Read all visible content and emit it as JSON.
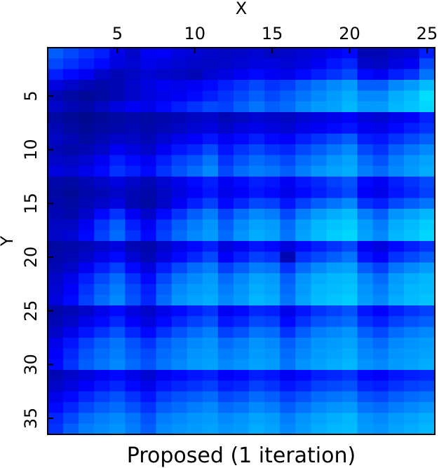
{
  "chart_data": {
    "type": "heatmap",
    "title": "Proposed (1 iteration)",
    "xlabel": "X",
    "ylabel": "Y",
    "x_ticks": [
      5,
      10,
      15,
      20,
      25
    ],
    "y_ticks": [
      5,
      10,
      15,
      20,
      25,
      30,
      35
    ],
    "x_range": [
      1,
      25
    ],
    "y_range": [
      1,
      36
    ],
    "x_axis_position": "top",
    "y_axis_inverted": true,
    "grid": false,
    "legend": "none",
    "colormap": [
      "#000a7a",
      "#0000ff",
      "#0090ff",
      "#00ffff"
    ],
    "value_range": [
      0,
      1
    ],
    "values": [
      [
        0.55,
        0.5,
        0.45,
        0.4,
        0.28,
        0.2,
        0.3,
        0.32,
        0.25,
        0.22,
        0.2,
        0.18,
        0.2,
        0.22,
        0.18,
        0.2,
        0.22,
        0.25,
        0.3,
        0.35,
        0.15,
        0.15,
        0.2,
        0.22,
        0.4
      ],
      [
        0.5,
        0.45,
        0.4,
        0.35,
        0.25,
        0.22,
        0.28,
        0.25,
        0.22,
        0.2,
        0.18,
        0.2,
        0.22,
        0.25,
        0.25,
        0.22,
        0.25,
        0.3,
        0.38,
        0.42,
        0.2,
        0.18,
        0.25,
        0.3,
        0.5
      ],
      [
        0.4,
        0.35,
        0.3,
        0.2,
        0.15,
        0.18,
        0.22,
        0.2,
        0.18,
        0.15,
        0.22,
        0.25,
        0.3,
        0.35,
        0.3,
        0.28,
        0.35,
        0.4,
        0.45,
        0.5,
        0.35,
        0.3,
        0.4,
        0.45,
        0.6
      ],
      [
        0.25,
        0.2,
        0.15,
        0.12,
        0.15,
        0.2,
        0.25,
        0.3,
        0.28,
        0.3,
        0.35,
        0.4,
        0.45,
        0.5,
        0.45,
        0.48,
        0.55,
        0.6,
        0.65,
        0.7,
        0.55,
        0.55,
        0.65,
        0.7,
        0.8
      ],
      [
        0.15,
        0.1,
        0.08,
        0.1,
        0.15,
        0.2,
        0.25,
        0.28,
        0.3,
        0.35,
        0.4,
        0.45,
        0.5,
        0.55,
        0.5,
        0.55,
        0.6,
        0.65,
        0.7,
        0.75,
        0.65,
        0.65,
        0.75,
        0.8,
        0.9
      ],
      [
        0.2,
        0.15,
        0.12,
        0.18,
        0.25,
        0.3,
        0.28,
        0.35,
        0.4,
        0.45,
        0.5,
        0.48,
        0.55,
        0.6,
        0.55,
        0.58,
        0.65,
        0.7,
        0.72,
        0.78,
        0.7,
        0.7,
        0.78,
        0.82,
        0.88
      ],
      [
        0.1,
        0.08,
        0.05,
        0.08,
        0.1,
        0.12,
        0.1,
        0.12,
        0.15,
        0.18,
        0.2,
        0.15,
        0.18,
        0.22,
        0.2,
        0.18,
        0.22,
        0.25,
        0.28,
        0.32,
        0.25,
        0.22,
        0.28,
        0.32,
        0.4
      ],
      [
        0.15,
        0.1,
        0.08,
        0.1,
        0.12,
        0.15,
        0.12,
        0.15,
        0.18,
        0.22,
        0.25,
        0.2,
        0.25,
        0.28,
        0.25,
        0.22,
        0.28,
        0.3,
        0.35,
        0.38,
        0.3,
        0.28,
        0.35,
        0.4,
        0.45
      ],
      [
        0.18,
        0.15,
        0.1,
        0.15,
        0.2,
        0.18,
        0.15,
        0.22,
        0.28,
        0.32,
        0.38,
        0.3,
        0.35,
        0.4,
        0.35,
        0.32,
        0.4,
        0.45,
        0.5,
        0.55,
        0.4,
        0.38,
        0.45,
        0.5,
        0.55
      ],
      [
        0.15,
        0.12,
        0.15,
        0.2,
        0.3,
        0.25,
        0.2,
        0.3,
        0.38,
        0.42,
        0.5,
        0.38,
        0.45,
        0.5,
        0.45,
        0.42,
        0.5,
        0.55,
        0.6,
        0.65,
        0.5,
        0.45,
        0.55,
        0.6,
        0.65
      ],
      [
        0.2,
        0.18,
        0.22,
        0.3,
        0.4,
        0.35,
        0.3,
        0.4,
        0.48,
        0.52,
        0.6,
        0.45,
        0.52,
        0.58,
        0.55,
        0.5,
        0.58,
        0.62,
        0.68,
        0.72,
        0.58,
        0.52,
        0.62,
        0.68,
        0.72
      ],
      [
        0.25,
        0.22,
        0.28,
        0.35,
        0.45,
        0.4,
        0.35,
        0.45,
        0.52,
        0.58,
        0.65,
        0.5,
        0.58,
        0.62,
        0.6,
        0.55,
        0.62,
        0.68,
        0.72,
        0.75,
        0.62,
        0.58,
        0.65,
        0.7,
        0.75
      ],
      [
        0.12,
        0.1,
        0.15,
        0.2,
        0.25,
        0.2,
        0.15,
        0.22,
        0.28,
        0.35,
        0.4,
        0.3,
        0.35,
        0.4,
        0.38,
        0.3,
        0.38,
        0.42,
        0.48,
        0.52,
        0.35,
        0.3,
        0.4,
        0.45,
        0.5
      ],
      [
        0.1,
        0.08,
        0.12,
        0.15,
        0.2,
        0.15,
        0.12,
        0.18,
        0.25,
        0.32,
        0.38,
        0.28,
        0.32,
        0.38,
        0.35,
        0.28,
        0.35,
        0.4,
        0.45,
        0.5,
        0.32,
        0.28,
        0.38,
        0.42,
        0.48
      ],
      [
        0.12,
        0.1,
        0.15,
        0.2,
        0.25,
        0.15,
        0.1,
        0.2,
        0.3,
        0.4,
        0.48,
        0.35,
        0.42,
        0.5,
        0.48,
        0.38,
        0.48,
        0.55,
        0.6,
        0.65,
        0.45,
        0.4,
        0.5,
        0.55,
        0.6
      ],
      [
        0.15,
        0.12,
        0.2,
        0.35,
        0.45,
        0.3,
        0.2,
        0.35,
        0.45,
        0.55,
        0.62,
        0.48,
        0.58,
        0.65,
        0.62,
        0.5,
        0.62,
        0.7,
        0.75,
        0.8,
        0.62,
        0.55,
        0.68,
        0.72,
        0.78
      ],
      [
        0.18,
        0.18,
        0.3,
        0.45,
        0.55,
        0.4,
        0.3,
        0.45,
        0.55,
        0.62,
        0.68,
        0.55,
        0.65,
        0.72,
        0.7,
        0.58,
        0.7,
        0.78,
        0.82,
        0.85,
        0.7,
        0.62,
        0.75,
        0.8,
        0.85
      ],
      [
        0.2,
        0.22,
        0.35,
        0.48,
        0.58,
        0.45,
        0.35,
        0.48,
        0.58,
        0.65,
        0.7,
        0.58,
        0.68,
        0.75,
        0.72,
        0.6,
        0.72,
        0.8,
        0.85,
        0.88,
        0.72,
        0.65,
        0.78,
        0.82,
        0.88
      ],
      [
        0.1,
        0.12,
        0.15,
        0.2,
        0.25,
        0.15,
        0.12,
        0.2,
        0.28,
        0.35,
        0.4,
        0.25,
        0.3,
        0.38,
        0.35,
        0.25,
        0.35,
        0.4,
        0.45,
        0.5,
        0.3,
        0.25,
        0.35,
        0.4,
        0.45
      ],
      [
        0.12,
        0.15,
        0.2,
        0.28,
        0.35,
        0.22,
        0.15,
        0.25,
        0.35,
        0.42,
        0.5,
        0.32,
        0.4,
        0.48,
        0.45,
        0.15,
        0.45,
        0.5,
        0.55,
        0.6,
        0.38,
        0.32,
        0.45,
        0.5,
        0.55
      ],
      [
        0.15,
        0.2,
        0.3,
        0.4,
        0.48,
        0.35,
        0.25,
        0.4,
        0.5,
        0.58,
        0.62,
        0.48,
        0.55,
        0.62,
        0.6,
        0.45,
        0.58,
        0.65,
        0.7,
        0.72,
        0.55,
        0.48,
        0.6,
        0.65,
        0.7
      ],
      [
        0.2,
        0.28,
        0.4,
        0.5,
        0.58,
        0.45,
        0.35,
        0.5,
        0.6,
        0.65,
        0.7,
        0.58,
        0.65,
        0.72,
        0.7,
        0.55,
        0.68,
        0.75,
        0.78,
        0.8,
        0.65,
        0.58,
        0.7,
        0.75,
        0.78
      ],
      [
        0.22,
        0.32,
        0.45,
        0.55,
        0.62,
        0.5,
        0.4,
        0.55,
        0.65,
        0.7,
        0.72,
        0.62,
        0.68,
        0.75,
        0.72,
        0.58,
        0.7,
        0.78,
        0.8,
        0.82,
        0.68,
        0.62,
        0.72,
        0.78,
        0.8
      ],
      [
        0.25,
        0.35,
        0.48,
        0.58,
        0.65,
        0.52,
        0.42,
        0.58,
        0.68,
        0.72,
        0.75,
        0.65,
        0.7,
        0.78,
        0.75,
        0.6,
        0.72,
        0.8,
        0.82,
        0.85,
        0.7,
        0.65,
        0.75,
        0.8,
        0.82
      ],
      [
        0.12,
        0.15,
        0.2,
        0.28,
        0.35,
        0.25,
        0.2,
        0.28,
        0.35,
        0.4,
        0.45,
        0.3,
        0.35,
        0.42,
        0.4,
        0.28,
        0.38,
        0.45,
        0.48,
        0.52,
        0.38,
        0.32,
        0.4,
        0.45,
        0.48
      ],
      [
        0.15,
        0.2,
        0.28,
        0.35,
        0.42,
        0.32,
        0.25,
        0.35,
        0.42,
        0.48,
        0.52,
        0.38,
        0.42,
        0.5,
        0.48,
        0.35,
        0.45,
        0.52,
        0.55,
        0.58,
        0.45,
        0.4,
        0.48,
        0.52,
        0.55
      ],
      [
        0.2,
        0.28,
        0.38,
        0.45,
        0.52,
        0.42,
        0.35,
        0.45,
        0.52,
        0.58,
        0.62,
        0.48,
        0.52,
        0.6,
        0.58,
        0.45,
        0.55,
        0.62,
        0.65,
        0.68,
        0.55,
        0.5,
        0.58,
        0.62,
        0.65
      ],
      [
        0.28,
        0.38,
        0.48,
        0.55,
        0.6,
        0.52,
        0.45,
        0.55,
        0.6,
        0.65,
        0.68,
        0.58,
        0.62,
        0.68,
        0.65,
        0.55,
        0.62,
        0.68,
        0.7,
        0.72,
        0.62,
        0.58,
        0.65,
        0.68,
        0.7
      ],
      [
        0.32,
        0.42,
        0.52,
        0.58,
        0.62,
        0.55,
        0.5,
        0.58,
        0.62,
        0.68,
        0.7,
        0.62,
        0.65,
        0.7,
        0.68,
        0.58,
        0.65,
        0.7,
        0.72,
        0.75,
        0.65,
        0.62,
        0.68,
        0.7,
        0.72
      ],
      [
        0.35,
        0.45,
        0.55,
        0.6,
        0.65,
        0.58,
        0.52,
        0.6,
        0.65,
        0.7,
        0.72,
        0.65,
        0.68,
        0.72,
        0.7,
        0.6,
        0.68,
        0.72,
        0.75,
        0.78,
        0.68,
        0.65,
        0.7,
        0.72,
        0.75
      ],
      [
        0.15,
        0.2,
        0.25,
        0.3,
        0.35,
        0.28,
        0.22,
        0.3,
        0.35,
        0.38,
        0.4,
        0.32,
        0.35,
        0.4,
        0.38,
        0.3,
        0.35,
        0.4,
        0.42,
        0.45,
        0.35,
        0.32,
        0.38,
        0.4,
        0.42
      ],
      [
        0.2,
        0.25,
        0.32,
        0.38,
        0.42,
        0.35,
        0.28,
        0.38,
        0.42,
        0.45,
        0.48,
        0.4,
        0.42,
        0.48,
        0.45,
        0.38,
        0.42,
        0.48,
        0.5,
        0.52,
        0.42,
        0.4,
        0.45,
        0.48,
        0.5
      ],
      [
        0.28,
        0.35,
        0.42,
        0.48,
        0.52,
        0.45,
        0.38,
        0.48,
        0.52,
        0.55,
        0.58,
        0.5,
        0.52,
        0.58,
        0.55,
        0.48,
        0.52,
        0.58,
        0.6,
        0.62,
        0.52,
        0.5,
        0.55,
        0.58,
        0.6
      ],
      [
        0.35,
        0.42,
        0.5,
        0.55,
        0.58,
        0.52,
        0.45,
        0.55,
        0.58,
        0.62,
        0.65,
        0.58,
        0.6,
        0.65,
        0.62,
        0.55,
        0.6,
        0.65,
        0.68,
        0.7,
        0.6,
        0.58,
        0.62,
        0.65,
        0.68
      ],
      [
        0.42,
        0.5,
        0.58,
        0.62,
        0.65,
        0.6,
        0.52,
        0.62,
        0.65,
        0.68,
        0.7,
        0.65,
        0.68,
        0.72,
        0.7,
        0.62,
        0.68,
        0.72,
        0.75,
        0.78,
        0.68,
        0.65,
        0.7,
        0.72,
        0.75
      ],
      [
        0.45,
        0.55,
        0.62,
        0.65,
        0.68,
        0.62,
        0.55,
        0.65,
        0.68,
        0.7,
        0.72,
        0.68,
        0.7,
        0.75,
        0.72,
        0.65,
        0.7,
        0.75,
        0.78,
        0.8,
        0.7,
        0.68,
        0.72,
        0.75,
        0.78
      ]
    ]
  }
}
